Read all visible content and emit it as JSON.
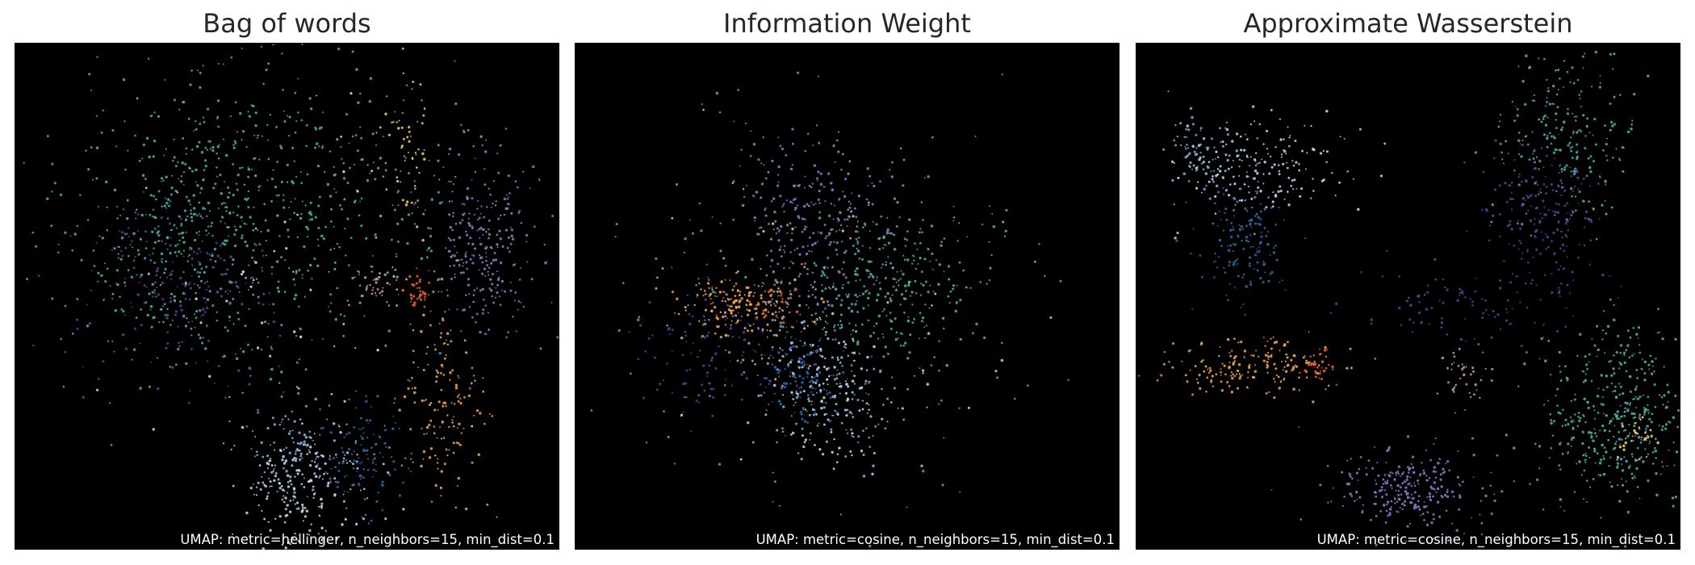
{
  "chart_data": [
    {
      "type": "scatter",
      "title": "Bag of words",
      "annotation": "UMAP: metric=hellinger, n_neighbors=15, min_dist=0.1",
      "background": "#000000",
      "axes_visible": false,
      "xlim": [
        0,
        100
      ],
      "ylim": [
        0,
        100
      ],
      "clusters": [
        {
          "color": "#4fb3a9",
          "center": [
            46,
            70
          ],
          "spread": [
            17,
            14
          ],
          "count": 520
        },
        {
          "color": "#4fb3a9",
          "center": [
            30,
            57
          ],
          "spread": [
            12,
            12
          ],
          "count": 300
        },
        {
          "color": "#8c7fc7",
          "center": [
            86,
            60
          ],
          "spread": [
            5,
            10
          ],
          "count": 280
        },
        {
          "color": "#5c3f96",
          "center": [
            32,
            52
          ],
          "spread": [
            10,
            9
          ],
          "count": 200
        },
        {
          "color": "#f4a94a",
          "center": [
            78,
            30
          ],
          "spread": [
            4,
            11
          ],
          "count": 150
        },
        {
          "color": "#c6ddf1",
          "center": [
            53,
            12
          ],
          "spread": [
            6,
            7
          ],
          "count": 220
        },
        {
          "color": "#2b6cad",
          "center": [
            64,
            18
          ],
          "spread": [
            4,
            5
          ],
          "count": 120
        },
        {
          "color": "#7fb3d9",
          "center": [
            50,
            20
          ],
          "spread": [
            4,
            5
          ],
          "count": 80
        },
        {
          "color": "#ef6431",
          "center": [
            74,
            51
          ],
          "spread": [
            1.5,
            2
          ],
          "count": 40
        },
        {
          "color": "#c89bb4",
          "center": [
            66,
            52
          ],
          "spread": [
            2,
            2
          ],
          "count": 40
        },
        {
          "color": "#f6d26a",
          "center": [
            72,
            78
          ],
          "spread": [
            3,
            8
          ],
          "count": 60
        },
        {
          "color": "#e8e8e8",
          "center": [
            50,
            50
          ],
          "spread": [
            18,
            18
          ],
          "count": 60
        }
      ]
    },
    {
      "type": "scatter",
      "title": "Information Weight",
      "annotation": "UMAP: metric=cosine, n_neighbors=15, min_dist=0.1",
      "background": "#000000",
      "axes_visible": false,
      "xlim": [
        0,
        100
      ],
      "ylim": [
        0,
        100
      ],
      "clusters": [
        {
          "color": "#8c7fc7",
          "center": [
            44,
            64
          ],
          "spread": [
            8,
            10
          ],
          "count": 280
        },
        {
          "color": "#4fb3a9",
          "center": [
            58,
            53
          ],
          "spread": [
            9,
            8
          ],
          "count": 300
        },
        {
          "color": "#f4a94a",
          "center": [
            30,
            49
          ],
          "spread": [
            6,
            3
          ],
          "count": 150
        },
        {
          "color": "#2b6cad",
          "center": [
            42,
            34
          ],
          "spread": [
            4,
            5
          ],
          "count": 120
        },
        {
          "color": "#c6ddf1",
          "center": [
            46,
            30
          ],
          "spread": [
            5,
            8
          ],
          "count": 140
        },
        {
          "color": "#5c3f96",
          "center": [
            26,
            38
          ],
          "spread": [
            8,
            6
          ],
          "count": 120
        },
        {
          "color": "#7fb3d9",
          "center": [
            48,
            28
          ],
          "spread": [
            7,
            7
          ],
          "count": 80
        },
        {
          "color": "#ef6431",
          "center": [
            37,
            48
          ],
          "spread": [
            2,
            2
          ],
          "count": 25
        },
        {
          "color": "#c89bb4",
          "center": [
            36,
            42
          ],
          "spread": [
            5,
            5
          ],
          "count": 50
        },
        {
          "color": "#f6d26a",
          "center": [
            45,
            45
          ],
          "spread": [
            18,
            18
          ],
          "count": 60
        },
        {
          "color": "#4fb3a9",
          "center": [
            45,
            45
          ],
          "spread": [
            22,
            20
          ],
          "count": 120
        }
      ]
    },
    {
      "type": "scatter",
      "title": "Approximate Wasserstein",
      "annotation": "UMAP: metric=cosine, n_neighbors=15, min_dist=0.1",
      "background": "#000000",
      "axes_visible": false,
      "xlim": [
        0,
        100
      ],
      "ylim": [
        0,
        100
      ],
      "clusters": [
        {
          "color": "#4fb3a9",
          "center": [
            88,
            26
          ],
          "spread": [
            7,
            9
          ],
          "count": 420
        },
        {
          "color": "#4fb3a9",
          "center": [
            79,
            82
          ],
          "spread": [
            6,
            9
          ],
          "count": 220
        },
        {
          "color": "#5c3f96",
          "center": [
            75,
            68
          ],
          "spread": [
            5,
            8
          ],
          "count": 200
        },
        {
          "color": "#8c7fc7",
          "center": [
            50,
            12
          ],
          "spread": [
            8,
            4
          ],
          "count": 260
        },
        {
          "color": "#f4a94a",
          "center": [
            22,
            36
          ],
          "spread": [
            8,
            3
          ],
          "count": 180
        },
        {
          "color": "#c6ddf1",
          "center": [
            22,
            75
          ],
          "spread": [
            8,
            5
          ],
          "count": 200
        },
        {
          "color": "#2b6cad",
          "center": [
            20,
            60
          ],
          "spread": [
            4,
            6
          ],
          "count": 150
        },
        {
          "color": "#7fb3d9",
          "center": [
            12,
            78
          ],
          "spread": [
            3,
            4
          ],
          "count": 60
        },
        {
          "color": "#ef6431",
          "center": [
            34,
            36
          ],
          "spread": [
            1.5,
            2
          ],
          "count": 35
        },
        {
          "color": "#c89bb4",
          "center": [
            60,
            34
          ],
          "spread": [
            3,
            3
          ],
          "count": 40
        },
        {
          "color": "#f6d26a",
          "center": [
            92,
            22
          ],
          "spread": [
            2,
            2
          ],
          "count": 30
        },
        {
          "color": "#5c3f96",
          "center": [
            62,
            48
          ],
          "spread": [
            10,
            4
          ],
          "count": 100
        }
      ]
    }
  ]
}
